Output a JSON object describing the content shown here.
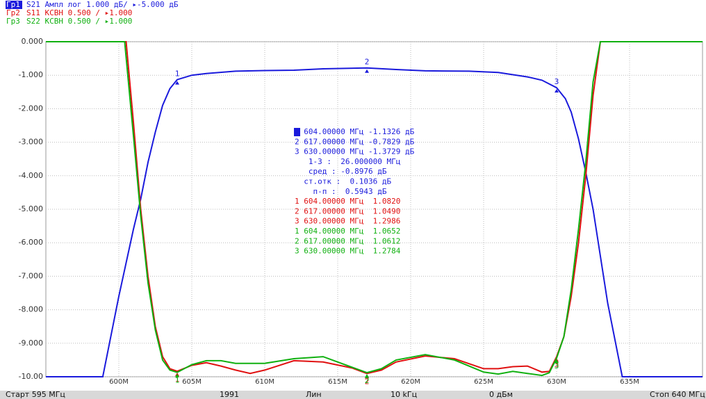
{
  "header": [
    {
      "tag": "Гр1",
      "text": "S21 Ампл лог 1.000 дБ/ ▸-5.000 дБ",
      "color": "#1a1adc"
    },
    {
      "tag": "Гр2",
      "text": "S11 КСВН 0.500 / ▸1.000",
      "color": "#e01010"
    },
    {
      "tag": "Гр3",
      "text": "S22 КСВН 0.500 / ▸1.000",
      "color": "#10b010"
    }
  ],
  "chart_data": {
    "type": "line",
    "xlim": [
      595,
      640
    ],
    "xticks": [
      {
        "value": 600,
        "label": "600M"
      },
      {
        "value": 605,
        "label": "605M"
      },
      {
        "value": 610,
        "label": "610M"
      },
      {
        "value": 615,
        "label": "615M"
      },
      {
        "value": 620,
        "label": "620M"
      },
      {
        "value": 625,
        "label": "625M"
      },
      {
        "value": 630,
        "label": "630M"
      },
      {
        "value": 635,
        "label": "635M"
      }
    ],
    "ylim": [
      -10,
      0
    ],
    "yticks": [
      {
        "value": 0,
        "label": "0.000"
      },
      {
        "value": -1,
        "label": "-1.000"
      },
      {
        "value": -2,
        "label": "-2.000"
      },
      {
        "value": -3,
        "label": "-3.000"
      },
      {
        "value": -4,
        "label": "-4.000"
      },
      {
        "value": -5,
        "label": "-5.000"
      },
      {
        "value": -6,
        "label": "-6.000"
      },
      {
        "value": -7,
        "label": "-7.000"
      },
      {
        "value": -8,
        "label": "-8.000"
      },
      {
        "value": -9,
        "label": "-9.000"
      },
      {
        "value": -10,
        "label": "-10.00"
      }
    ],
    "y2lim": [
      1,
      6
    ],
    "grid": true,
    "series": [
      {
        "name": "S21",
        "color": "#1a1adc",
        "x": [
          595,
          598.9,
          600,
          601,
          601.5,
          602,
          602.5,
          603,
          603.5,
          604,
          605,
          606,
          608,
          610,
          612,
          614,
          617,
          619,
          621,
          624,
          626,
          628,
          629,
          630,
          630.6,
          631,
          631.5,
          632,
          632.5,
          633,
          633.5,
          634.5,
          640
        ],
        "values": [
          -10,
          -10,
          -7.6,
          -5.6,
          -4.7,
          -3.6,
          -2.7,
          -1.9,
          -1.4,
          -1.1326,
          -1.0,
          -0.95,
          -0.88,
          -0.86,
          -0.85,
          -0.81,
          -0.7829,
          -0.83,
          -0.87,
          -0.88,
          -0.92,
          -1.05,
          -1.15,
          -1.3729,
          -1.7,
          -2.1,
          -2.9,
          -3.9,
          -5.0,
          -6.4,
          -7.8,
          -10,
          -10
        ],
        "markers": {
          "x": [
            604,
            617,
            630
          ],
          "values": [
            -1.1326,
            -0.7829,
            -1.3729
          ],
          "labels": [
            "1",
            "2",
            "3"
          ]
        }
      },
      {
        "name": "S11",
        "color": "#e01010",
        "axis": "y2",
        "x": [
          595,
          600.5,
          601,
          601.5,
          602,
          602.5,
          603,
          603.5,
          604,
          605,
          606,
          607,
          608,
          609,
          610,
          612,
          614,
          616,
          617,
          618,
          619,
          621,
          623,
          625,
          626,
          627,
          628,
          629,
          629.5,
          630,
          630.5,
          631,
          631.5,
          632,
          632.5,
          633,
          640
        ],
        "values": [
          6,
          6,
          4.8,
          3.5,
          2.5,
          1.75,
          1.3,
          1.12,
          1.082,
          1.17,
          1.21,
          1.16,
          1.1,
          1.05,
          1.1,
          1.24,
          1.22,
          1.13,
          1.049,
          1.1,
          1.22,
          1.31,
          1.27,
          1.12,
          1.12,
          1.15,
          1.16,
          1.07,
          1.08,
          1.2986,
          1.6,
          2.2,
          3.0,
          4.0,
          5.2,
          6,
          6
        ],
        "markers": {
          "x": [
            604,
            617,
            630
          ],
          "values": [
            1.082,
            1.049,
            1.2986
          ],
          "labels": [
            "1",
            "2",
            "3"
          ]
        }
      },
      {
        "name": "S22",
        "color": "#10b010",
        "axis": "y2",
        "x": [
          595,
          600.4,
          601,
          601.5,
          602,
          602.5,
          603,
          603.5,
          604,
          605,
          606,
          607,
          608,
          610,
          612,
          614,
          616,
          617,
          618,
          619,
          621,
          623,
          625,
          626,
          627,
          628,
          629,
          629.5,
          630,
          630.5,
          631,
          631.5,
          632,
          632.5,
          633,
          640
        ],
        "values": [
          6,
          6,
          4.6,
          3.4,
          2.4,
          1.7,
          1.25,
          1.1,
          1.0652,
          1.18,
          1.24,
          1.24,
          1.2,
          1.2,
          1.27,
          1.3,
          1.14,
          1.0612,
          1.12,
          1.25,
          1.33,
          1.25,
          1.07,
          1.04,
          1.08,
          1.05,
          1.02,
          1.06,
          1.2784,
          1.6,
          2.3,
          3.2,
          4.2,
          5.4,
          6,
          6
        ],
        "markers": {
          "x": [
            604,
            617,
            630
          ],
          "values": [
            1.0652,
            1.0612,
            1.2784
          ],
          "labels": [
            "1",
            "2",
            "3"
          ]
        }
      }
    ]
  },
  "readout": [
    {
      "color": "#1a1adc",
      "lines": [
        "1 604.00000 МГц -1.1326 дБ",
        "2 617.00000 МГц -0.7829 дБ",
        "3 630.00000 МГц -1.3729 дБ",
        "   1-3 :  26.000000 МГц",
        "   сред : -0.8976 дБ",
        "  ст.отк :  0.1036 дБ",
        "    п-п :  0.5943 дБ"
      ]
    },
    {
      "color": "#e01010",
      "lines": [
        "1 604.00000 МГц  1.0820",
        "2 617.00000 МГц  1.0490",
        "3 630.00000 МГц  1.2986"
      ]
    },
    {
      "color": "#10b010",
      "lines": [
        "1 604.00000 МГц  1.0652",
        "2 617.00000 МГц  1.0612",
        "3 630.00000 МГц  1.2784"
      ]
    }
  ],
  "status": [
    "Старт 595 МГц",
    "1991",
    "Лин",
    "10 kГц",
    "0 дБм",
    "Стоп 640 МГц"
  ]
}
